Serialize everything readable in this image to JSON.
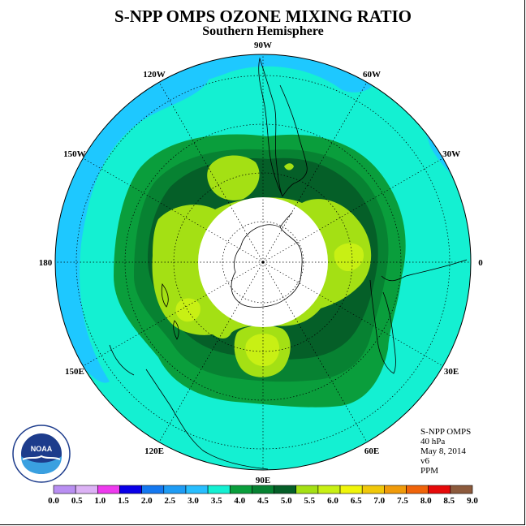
{
  "title": "S-NPP OMPS OZONE MIXING RATIO",
  "subtitle": "Southern Hemisphere",
  "info": {
    "instrument": "S-NPP OMPS",
    "pressure": "40 hPa",
    "date": "May 8, 2014",
    "version": "v6",
    "units": "PPM"
  },
  "longitude_labels": [
    {
      "label": "90W"
    },
    {
      "label": "60W"
    },
    {
      "label": "30W"
    },
    {
      "label": "0"
    },
    {
      "label": "30E"
    },
    {
      "label": "60E"
    },
    {
      "label": "90E"
    },
    {
      "label": "120E"
    },
    {
      "label": "150E"
    },
    {
      "label": "180"
    },
    {
      "label": "150W"
    },
    {
      "label": "120W"
    }
  ],
  "logo": {
    "text": "NOAA",
    "ring_text": "NATIONAL OCEANIC AND ATMOSPHERIC ADMINISTRATION · U.S. DEPARTMENT OF COMMERCE"
  },
  "colorbar": {
    "tick_labels": [
      "0.0",
      "0.5",
      "1.0",
      "1.5",
      "2.0",
      "2.5",
      "3.0",
      "3.5",
      "4.0",
      "4.5",
      "5.0",
      "5.5",
      "6.0",
      "6.5",
      "7.0",
      "7.5",
      "8.0",
      "8.5",
      "9.0"
    ],
    "colors": [
      "#b98ff2",
      "#dcb2f5",
      "#ee3aee",
      "#0a00e8",
      "#1478f0",
      "#1e9cf5",
      "#28beff",
      "#14f0d2",
      "#0a9e3c",
      "#078232",
      "#055f28",
      "#a4e014",
      "#c8f014",
      "#f0f50a",
      "#f0c80a",
      "#f09b0a",
      "#f0640a",
      "#e60a0a",
      "#8c5a3c"
    ]
  },
  "map_colors": {
    "band_3_0": "#1ec8ff",
    "band_3_5": "#14f0d2",
    "band_4_0": "#0a9e3c",
    "band_4_5": "#078232",
    "band_5_0": "#055f28",
    "band_5_5": "#a4e014",
    "band_6_0": "#c8f014",
    "no_data": "#ffffff"
  }
}
